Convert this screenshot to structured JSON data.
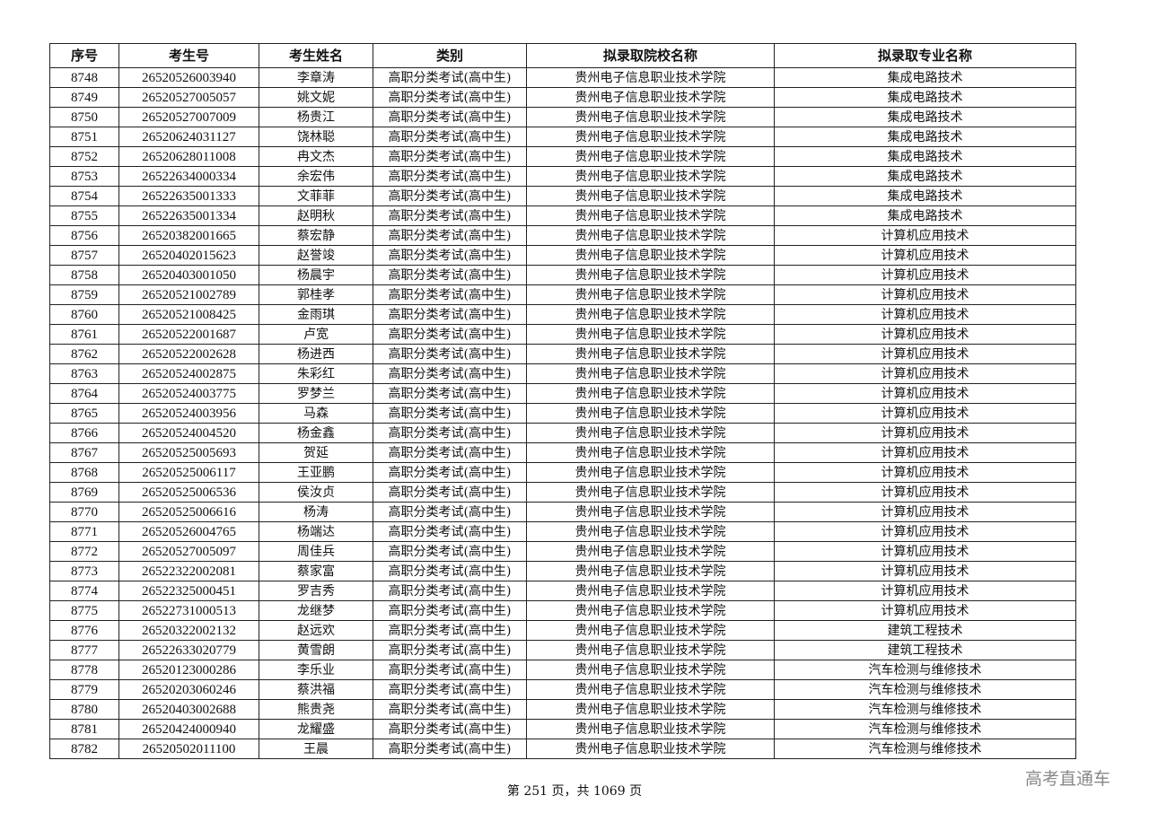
{
  "table": {
    "headers": [
      "序号",
      "考生号",
      "考生姓名",
      "类别",
      "拟录取院校名称",
      "拟录取专业名称"
    ],
    "rows": [
      [
        "8748",
        "26520526003940",
        "李章涛",
        "高职分类考试(高中生)",
        "贵州电子信息职业技术学院",
        "集成电路技术"
      ],
      [
        "8749",
        "26520527005057",
        "姚文妮",
        "高职分类考试(高中生)",
        "贵州电子信息职业技术学院",
        "集成电路技术"
      ],
      [
        "8750",
        "26520527007009",
        "杨贵江",
        "高职分类考试(高中生)",
        "贵州电子信息职业技术学院",
        "集成电路技术"
      ],
      [
        "8751",
        "26520624031127",
        "饶林聪",
        "高职分类考试(高中生)",
        "贵州电子信息职业技术学院",
        "集成电路技术"
      ],
      [
        "8752",
        "26520628011008",
        "冉文杰",
        "高职分类考试(高中生)",
        "贵州电子信息职业技术学院",
        "集成电路技术"
      ],
      [
        "8753",
        "26522634000334",
        "余宏伟",
        "高职分类考试(高中生)",
        "贵州电子信息职业技术学院",
        "集成电路技术"
      ],
      [
        "8754",
        "26522635001333",
        "文菲菲",
        "高职分类考试(高中生)",
        "贵州电子信息职业技术学院",
        "集成电路技术"
      ],
      [
        "8755",
        "26522635001334",
        "赵明秋",
        "高职分类考试(高中生)",
        "贵州电子信息职业技术学院",
        "集成电路技术"
      ],
      [
        "8756",
        "26520382001665",
        "蔡宏静",
        "高职分类考试(高中生)",
        "贵州电子信息职业技术学院",
        "计算机应用技术"
      ],
      [
        "8757",
        "26520402015623",
        "赵誉竣",
        "高职分类考试(高中生)",
        "贵州电子信息职业技术学院",
        "计算机应用技术"
      ],
      [
        "8758",
        "26520403001050",
        "杨晨宇",
        "高职分类考试(高中生)",
        "贵州电子信息职业技术学院",
        "计算机应用技术"
      ],
      [
        "8759",
        "26520521002789",
        "郭桂孝",
        "高职分类考试(高中生)",
        "贵州电子信息职业技术学院",
        "计算机应用技术"
      ],
      [
        "8760",
        "26520521008425",
        "金雨琪",
        "高职分类考试(高中生)",
        "贵州电子信息职业技术学院",
        "计算机应用技术"
      ],
      [
        "8761",
        "26520522001687",
        "卢宽",
        "高职分类考试(高中生)",
        "贵州电子信息职业技术学院",
        "计算机应用技术"
      ],
      [
        "8762",
        "26520522002628",
        "杨进西",
        "高职分类考试(高中生)",
        "贵州电子信息职业技术学院",
        "计算机应用技术"
      ],
      [
        "8763",
        "26520524002875",
        "朱彩红",
        "高职分类考试(高中生)",
        "贵州电子信息职业技术学院",
        "计算机应用技术"
      ],
      [
        "8764",
        "26520524003775",
        "罗梦兰",
        "高职分类考试(高中生)",
        "贵州电子信息职业技术学院",
        "计算机应用技术"
      ],
      [
        "8765",
        "26520524003956",
        "马森",
        "高职分类考试(高中生)",
        "贵州电子信息职业技术学院",
        "计算机应用技术"
      ],
      [
        "8766",
        "26520524004520",
        "杨金鑫",
        "高职分类考试(高中生)",
        "贵州电子信息职业技术学院",
        "计算机应用技术"
      ],
      [
        "8767",
        "26520525005693",
        "贺延",
        "高职分类考试(高中生)",
        "贵州电子信息职业技术学院",
        "计算机应用技术"
      ],
      [
        "8768",
        "26520525006117",
        "王亚鹏",
        "高职分类考试(高中生)",
        "贵州电子信息职业技术学院",
        "计算机应用技术"
      ],
      [
        "8769",
        "26520525006536",
        "侯汝贞",
        "高职分类考试(高中生)",
        "贵州电子信息职业技术学院",
        "计算机应用技术"
      ],
      [
        "8770",
        "26520525006616",
        "杨涛",
        "高职分类考试(高中生)",
        "贵州电子信息职业技术学院",
        "计算机应用技术"
      ],
      [
        "8771",
        "26520526004765",
        "杨端达",
        "高职分类考试(高中生)",
        "贵州电子信息职业技术学院",
        "计算机应用技术"
      ],
      [
        "8772",
        "26520527005097",
        "周佳兵",
        "高职分类考试(高中生)",
        "贵州电子信息职业技术学院",
        "计算机应用技术"
      ],
      [
        "8773",
        "26522322002081",
        "蔡家富",
        "高职分类考试(高中生)",
        "贵州电子信息职业技术学院",
        "计算机应用技术"
      ],
      [
        "8774",
        "26522325000451",
        "罗吉秀",
        "高职分类考试(高中生)",
        "贵州电子信息职业技术学院",
        "计算机应用技术"
      ],
      [
        "8775",
        "26522731000513",
        "龙继梦",
        "高职分类考试(高中生)",
        "贵州电子信息职业技术学院",
        "计算机应用技术"
      ],
      [
        "8776",
        "26520322002132",
        "赵远欢",
        "高职分类考试(高中生)",
        "贵州电子信息职业技术学院",
        "建筑工程技术"
      ],
      [
        "8777",
        "26522633020779",
        "黄雪朗",
        "高职分类考试(高中生)",
        "贵州电子信息职业技术学院",
        "建筑工程技术"
      ],
      [
        "8778",
        "26520123000286",
        "李乐业",
        "高职分类考试(高中生)",
        "贵州电子信息职业技术学院",
        "汽车检测与维修技术"
      ],
      [
        "8779",
        "26520203060246",
        "蔡洪福",
        "高职分类考试(高中生)",
        "贵州电子信息职业技术学院",
        "汽车检测与维修技术"
      ],
      [
        "8780",
        "26520403002688",
        "熊贵尧",
        "高职分类考试(高中生)",
        "贵州电子信息职业技术学院",
        "汽车检测与维修技术"
      ],
      [
        "8781",
        "26520424000940",
        "龙耀盛",
        "高职分类考试(高中生)",
        "贵州电子信息职业技术学院",
        "汽车检测与维修技术"
      ],
      [
        "8782",
        "26520502011100",
        "王晨",
        "高职分类考试(高中生)",
        "贵州电子信息职业技术学院",
        "汽车检测与维修技术"
      ]
    ]
  },
  "footer": {
    "page_text": "第 251 页，共 1069 页"
  },
  "watermark": {
    "brand": "高考直通车"
  }
}
